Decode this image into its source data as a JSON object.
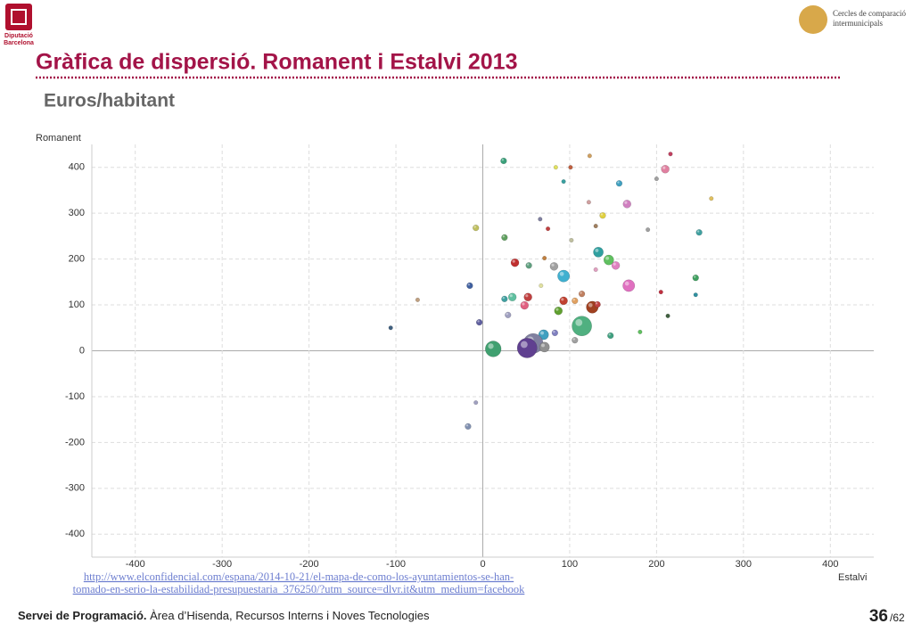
{
  "header": {
    "logo_left": [
      "Diputació",
      "Barcelona"
    ],
    "logo_right": [
      "Cercles de comparació",
      "intermunicipals"
    ],
    "title": "Gràfica de dispersió. Romanent i Estalvi 2013",
    "subtitle": "Euros/habitant"
  },
  "chart_data": {
    "type": "scatter",
    "y_label": "Romanent",
    "x_label": "Estalvi",
    "xlim": [
      -450,
      450
    ],
    "ylim": [
      -450,
      450
    ],
    "xticks": [
      -400,
      -300,
      -200,
      -100,
      0,
      100,
      200,
      300,
      400
    ],
    "yticks": [
      -400,
      -300,
      -200,
      -100,
      0,
      100,
      200,
      300,
      400
    ],
    "grid": true,
    "x": [
      24,
      123,
      216,
      210,
      84,
      101,
      93,
      157,
      200,
      263,
      166,
      138,
      122,
      66,
      -8,
      25,
      75,
      130,
      249,
      190,
      102,
      133,
      145,
      153,
      37,
      53,
      82,
      93,
      71,
      130,
      245,
      168,
      -15,
      67,
      25,
      34,
      52,
      114,
      106,
      93,
      48,
      126,
      132,
      87,
      205,
      245,
      -75,
      29,
      -4,
      114,
      -106,
      213,
      70,
      83,
      106,
      147,
      181,
      58,
      51,
      12,
      71,
      -8,
      -17
    ],
    "values": [
      414,
      425,
      429,
      396,
      400,
      400,
      369,
      365,
      375,
      332,
      320,
      295,
      324,
      287,
      268,
      247,
      266,
      272,
      258,
      264,
      241,
      215,
      198,
      186,
      192,
      186,
      184,
      163,
      202,
      177,
      159,
      142,
      142,
      142,
      113,
      117,
      117,
      124,
      109,
      109,
      99,
      95,
      101,
      87,
      128,
      122,
      111,
      78,
      62,
      54,
      50,
      76,
      35,
      39,
      23,
      33,
      41,
      16,
      6,
      4,
      8,
      -113,
      -165
    ],
    "sizes": [
      2,
      1,
      1,
      3,
      1,
      1,
      1,
      2,
      1,
      1,
      3,
      2,
      1,
      1,
      2,
      2,
      1,
      1,
      2,
      1,
      1,
      4,
      4,
      3,
      3,
      2,
      3,
      5,
      1,
      1,
      2,
      5,
      2,
      1,
      2,
      3,
      3,
      2,
      2,
      3,
      3,
      5,
      2,
      3,
      1,
      1,
      1,
      2,
      2,
      9,
      1,
      1,
      4,
      2,
      2,
      2,
      1,
      9,
      9,
      7,
      4,
      1,
      2
    ],
    "colors": [
      "#3aa07a",
      "#d0a060",
      "#c04060",
      "#e080a0",
      "#e0e060",
      "#c06040",
      "#3aa0a0",
      "#40a0c0",
      "#a0a0a0",
      "#e0c060",
      "#d080c0",
      "#e0d040",
      "#d0a0a0",
      "#8080a0",
      "#c0c060",
      "#60a060",
      "#c04040",
      "#a08060",
      "#40a0a0",
      "#a0a0a0",
      "#c0c0a0",
      "#30a0a0",
      "#60c060",
      "#e080c0",
      "#c03030",
      "#60a080",
      "#a0a0a0",
      "#40b0d0",
      "#c08040",
      "#e0a0c0",
      "#40a060",
      "#e070c0",
      "#4060a0",
      "#e0e0a0",
      "#40a0a0",
      "#60c0a0",
      "#c04040",
      "#c08060",
      "#e0a060",
      "#c04030",
      "#e06080",
      "#a04020",
      "#c04040",
      "#60a030",
      "#c03040",
      "#3090a0",
      "#c0a080",
      "#a0a0c0",
      "#6060a0",
      "#50b080",
      "#406080",
      "#406040",
      "#40a0c0",
      "#8080c0",
      "#a0a0a0",
      "#40a080",
      "#60c060",
      "#8080a0",
      "#604090",
      "#40a070",
      "#909090",
      "#a0a0c0",
      "#8090b0"
    ]
  },
  "source": [
    "http://www.elconfidencial.com/espana/2014-10-21/el-mapa-de-como-los-ayuntamientos-se-han-",
    "tomado-en-serio-la-estabilidad-presupuestaria_376250/?utm_source=dlvr.it&utm_medium=facebook"
  ],
  "footer": {
    "bold": "Servei de Programació.",
    "text": " Àrea d’Hisenda, Recursos Interns i Noves Tecnologies",
    "page": "36",
    "total": "/62"
  }
}
